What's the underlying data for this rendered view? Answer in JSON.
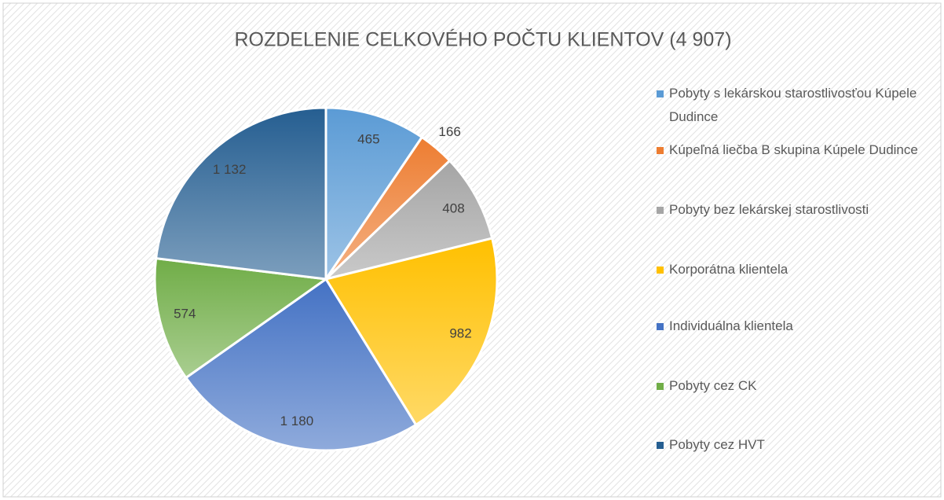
{
  "chart_data": {
    "type": "pie",
    "title": "ROZDELENIE CELKOVÉHO POČTU KLIENTOV (4 907)",
    "categories": [
      "Pobyty s lekárskou starostlivosťou Kúpele Dudince",
      "Kúpeľná liečba B skupina Kúpele Dudince",
      "Pobyty bez lekárskej starostlivosti",
      "Korporátna klientela",
      "Individuálna klientela",
      "Pobyty cez CK",
      "Pobyty cez HVT"
    ],
    "values": [
      465,
      166,
      408,
      982,
      1180,
      574,
      1132
    ],
    "value_labels": [
      "465",
      "166",
      "408",
      "982",
      "1 180",
      "574",
      "1 132"
    ],
    "colors": [
      "#5b9bd5",
      "#ed7d31",
      "#a5a5a5",
      "#ffc000",
      "#4472c4",
      "#70ad47",
      "#255e91"
    ],
    "legend": "right"
  }
}
